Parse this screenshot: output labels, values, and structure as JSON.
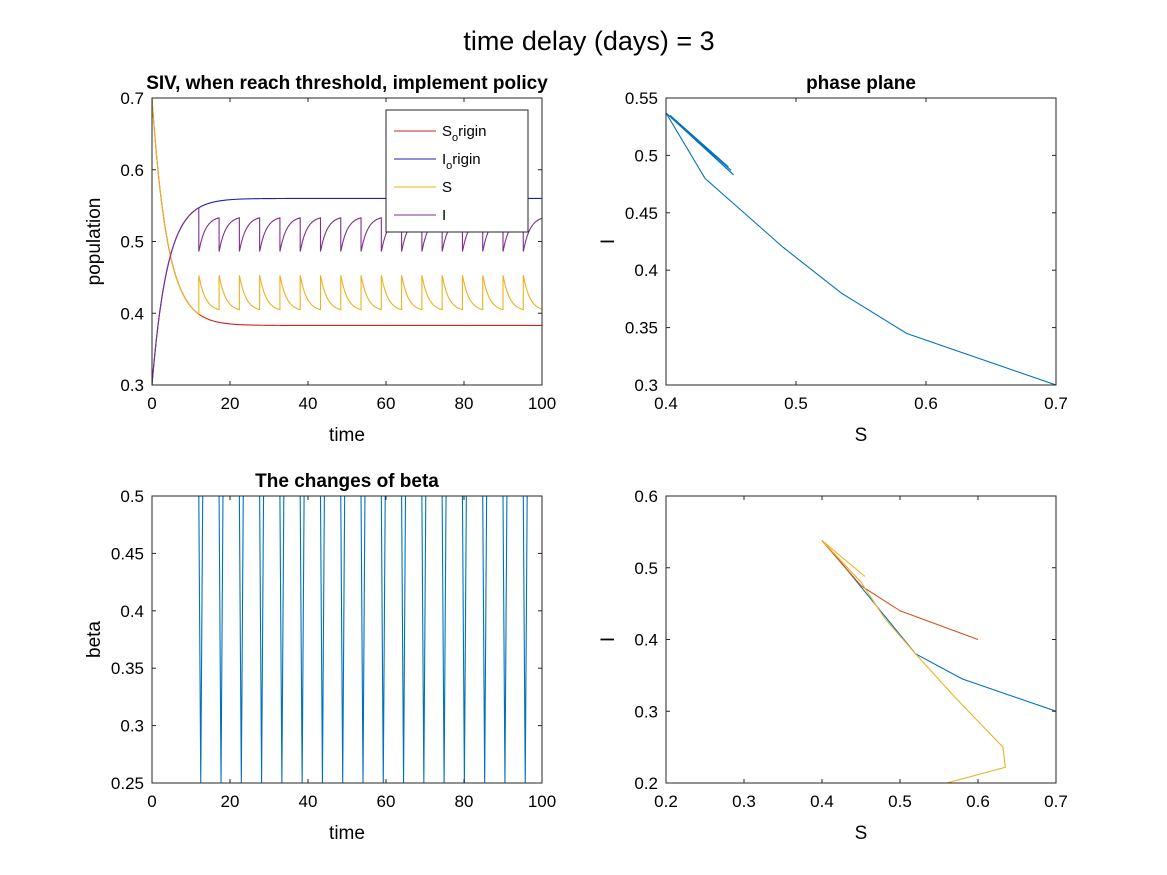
{
  "figure_title": "time delay (days) = 3",
  "colors": {
    "red": "#d1211e",
    "blue": "#1f1fb8",
    "yellow": "#edb120",
    "purple": "#7e2f8e",
    "matlab_blue": "#0072bd",
    "orange_red": "#d95319"
  },
  "chart_data": [
    {
      "type": "line",
      "title": "SIV, when reach threshold, implement policy",
      "xlabel": "time",
      "ylabel": "population",
      "xlim": [
        0,
        100
      ],
      "ylim": [
        0.3,
        0.7
      ],
      "xticks": [
        0,
        20,
        40,
        60,
        80,
        100
      ],
      "yticks": [
        0.3,
        0.4,
        0.5,
        0.6,
        0.7
      ],
      "legend_position": "top-right",
      "legend": [
        {
          "main": "S",
          "sub": "o",
          "rest": "rigin"
        },
        {
          "main": "I",
          "sub": "o",
          "rest": "rigin"
        },
        {
          "main": "S",
          "sub": "",
          "rest": ""
        },
        {
          "main": "I",
          "sub": "",
          "rest": ""
        }
      ],
      "series": [
        {
          "name": "S_origin",
          "color_key": "red",
          "model": "decay",
          "start": 0.7,
          "end": 0.383,
          "rate": 0.25
        },
        {
          "name": "I_origin",
          "color_key": "blue",
          "model": "decay",
          "start": 0.3,
          "end": 0.56,
          "rate": 0.25
        },
        {
          "name": "S",
          "color_key": "yellow",
          "model": "sawtooth",
          "start": 0.7,
          "base_end": 0.383,
          "switch_t": 12,
          "period": 5.2,
          "low": 0.405,
          "high": 0.453
        },
        {
          "name": "I",
          "color_key": "purple",
          "model": "sawtooth",
          "start": 0.3,
          "base_end": 0.56,
          "switch_t": 12,
          "period": 5.2,
          "low": 0.486,
          "high": 0.533
        }
      ]
    },
    {
      "type": "line",
      "title": "phase plane",
      "xlabel": "S",
      "ylabel": "I",
      "xlim": [
        0.4,
        0.7
      ],
      "ylim": [
        0.3,
        0.55
      ],
      "xticks": [
        0.4,
        0.5,
        0.6,
        0.7
      ],
      "yticks": [
        0.3,
        0.35,
        0.4,
        0.45,
        0.5,
        0.55
      ],
      "series": [
        {
          "color_key": "matlab_blue",
          "points": [
            [
              0.7,
              0.3
            ],
            [
              0.585,
              0.345
            ],
            [
              0.535,
              0.38
            ],
            [
              0.49,
              0.42
            ],
            [
              0.43,
              0.48
            ],
            [
              0.4,
              0.537
            ],
            [
              0.452,
              0.483
            ],
            [
              0.405,
              0.533
            ],
            [
              0.45,
              0.487
            ],
            [
              0.41,
              0.528
            ],
            [
              0.448,
              0.49
            ],
            [
              0.403,
              0.535
            ]
          ]
        }
      ]
    },
    {
      "type": "line",
      "title": "The changes of beta",
      "xlabel": "time",
      "ylabel": "beta",
      "xlim": [
        0,
        100
      ],
      "ylim": [
        0.25,
        0.5
      ],
      "xticks": [
        0,
        20,
        40,
        60,
        80,
        100
      ],
      "yticks": [
        0.25,
        0.3,
        0.35,
        0.4,
        0.45,
        0.5
      ],
      "series": [
        {
          "color_key": "matlab_blue",
          "model": "pulse",
          "high": 0.5,
          "low": 0.25,
          "first": 12,
          "period": 5.2,
          "width": 1.0
        }
      ]
    },
    {
      "type": "line",
      "title": "",
      "xlabel": "S",
      "ylabel": "I",
      "xlim": [
        0.2,
        0.7
      ],
      "ylim": [
        0.2,
        0.6
      ],
      "xticks": [
        0.2,
        0.3,
        0.4,
        0.5,
        0.6,
        0.7
      ],
      "yticks": [
        0.2,
        0.3,
        0.4,
        0.5,
        0.6
      ],
      "series": [
        {
          "color_key": "matlab_blue",
          "points": [
            [
              0.7,
              0.3
            ],
            [
              0.58,
              0.345
            ],
            [
              0.52,
              0.38
            ],
            [
              0.46,
              0.46
            ],
            [
              0.43,
              0.5
            ],
            [
              0.4,
              0.538
            ]
          ]
        },
        {
          "color_key": "orange_red",
          "points": [
            [
              0.6,
              0.4
            ],
            [
              0.5,
              0.44
            ],
            [
              0.45,
              0.475
            ],
            [
              0.4,
              0.538
            ]
          ]
        },
        {
          "color_key": "yellow",
          "points": [
            [
              0.2,
              0.2
            ],
            [
              0.3,
              0.2
            ],
            [
              0.45,
              0.199
            ],
            [
              0.56,
              0.2
            ],
            [
              0.635,
              0.222
            ],
            [
              0.632,
              0.25
            ],
            [
              0.57,
              0.32
            ],
            [
              0.52,
              0.38
            ],
            [
              0.48,
              0.43
            ],
            [
              0.45,
              0.48
            ],
            [
              0.4,
              0.538
            ],
            [
              0.455,
              0.488
            ]
          ]
        }
      ]
    }
  ]
}
